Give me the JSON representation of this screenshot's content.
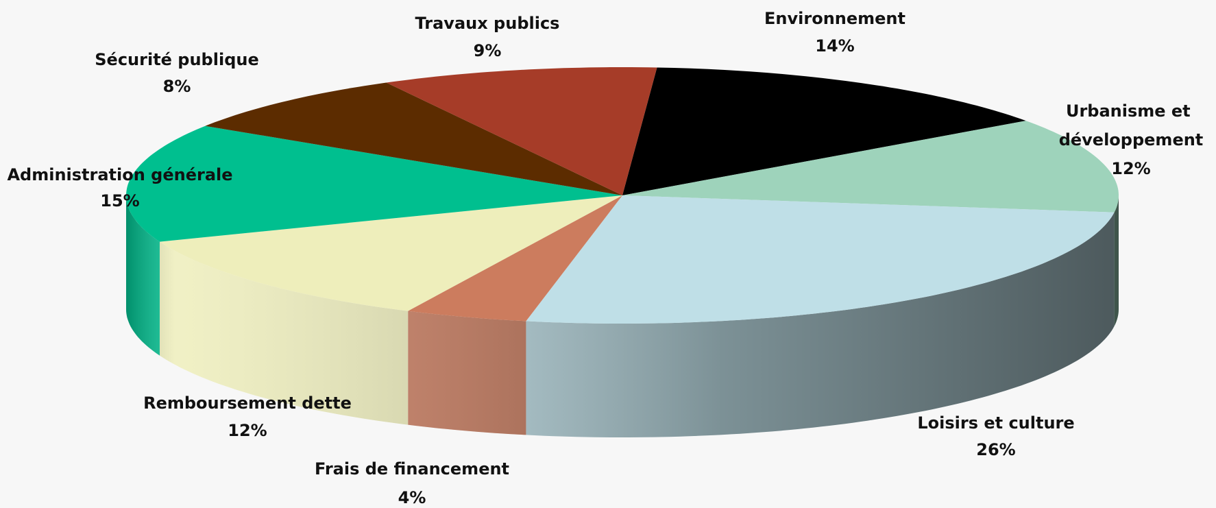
{
  "chart_data": {
    "type": "pie",
    "categories": [
      "Environnement",
      "Urbanisme et développement",
      "Loisirs et culture",
      "Frais de financement",
      "Remboursement dette",
      "Administration générale",
      "Sécurité publique",
      "Travaux publics"
    ],
    "values": [
      14,
      12,
      26,
      4,
      12,
      15,
      8,
      9
    ],
    "value_labels": [
      "14%",
      "12%",
      "26%",
      "4%",
      "12%",
      "15%",
      "8%",
      "9%"
    ],
    "colors": [
      "#000000",
      "#9ed3bb",
      "#bfdfe7",
      "#cc7c5e",
      "#eeeebb",
      "#00bf8f",
      "#5c2c00",
      "#a63c28"
    ]
  }
}
